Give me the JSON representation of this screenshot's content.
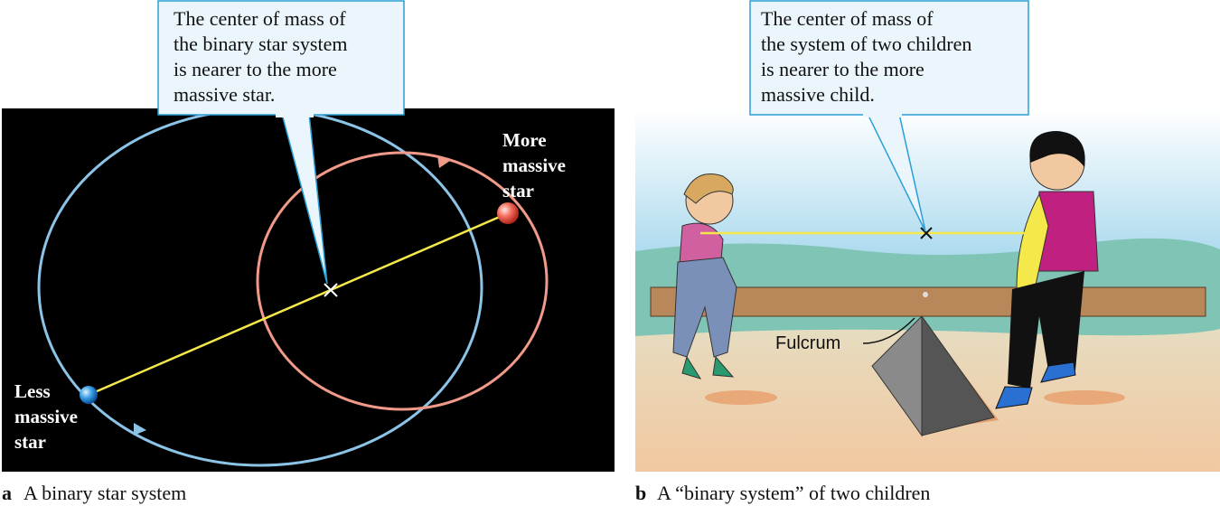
{
  "panels": [
    {
      "letter": "a",
      "caption": "A binary star system",
      "callout": [
        "The center of mass of",
        "the binary star system",
        "is nearer to the more",
        "massive star."
      ],
      "labels": [
        [
          "More",
          "massive",
          "star"
        ],
        [
          "Less",
          "massive",
          "star"
        ]
      ]
    },
    {
      "letter": "b",
      "caption": "A “binary system” of two children",
      "callout": [
        "The center of mass of",
        "the system of two children",
        "is nearer to the more",
        "massive child."
      ],
      "labels": [
        [
          "Fulcrum"
        ]
      ]
    }
  ]
}
